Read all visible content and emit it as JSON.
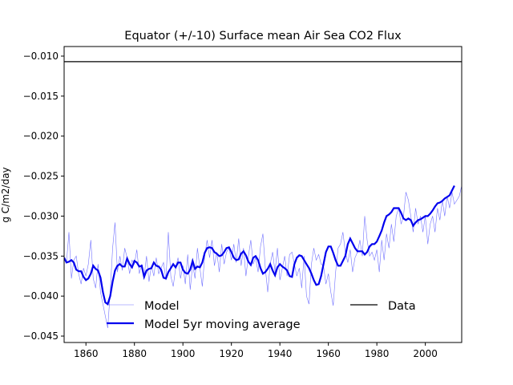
{
  "chart_data": {
    "type": "line",
    "title": "Equator (+/-10) Surface mean Air Sea CO2 Flux",
    "ylabel": "g C/m2/day",
    "xlabel": "",
    "xlim": [
      1851,
      2015
    ],
    "ylim": [
      -0.0458,
      -0.0088
    ],
    "xticks": [
      1860,
      1880,
      1900,
      1920,
      1940,
      1960,
      1980,
      2000
    ],
    "yticks": [
      -0.045,
      -0.04,
      -0.035,
      -0.03,
      -0.025,
      -0.02,
      -0.015,
      -0.01
    ],
    "ytick_labels": [
      "−0.045",
      "−0.040",
      "−0.035",
      "−0.030",
      "−0.025",
      "−0.020",
      "−0.015",
      "−0.010"
    ],
    "grid": false,
    "legend": {
      "placement": "bottom",
      "entries": [
        {
          "label": "Model",
          "series": "model"
        },
        {
          "label": "Model 5yr moving average",
          "series": "avg"
        },
        {
          "label": "Data",
          "series": "data"
        }
      ]
    },
    "colors": {
      "model": "#0000ff",
      "avg": "#0000ee",
      "data": "#000000"
    },
    "series": [
      {
        "id": "model",
        "name": "Model",
        "x_start": 1851,
        "values": [
          -0.0352,
          -0.0358,
          -0.032,
          -0.0378,
          -0.0355,
          -0.035,
          -0.0372,
          -0.0385,
          -0.0365,
          -0.0375,
          -0.036,
          -0.033,
          -0.0378,
          -0.039,
          -0.036,
          -0.0395,
          -0.041,
          -0.0425,
          -0.044,
          -0.0395,
          -0.034,
          -0.0308,
          -0.037,
          -0.035,
          -0.0368,
          -0.034,
          -0.0352,
          -0.0372,
          -0.0355,
          -0.036,
          -0.0342,
          -0.0372,
          -0.036,
          -0.0375,
          -0.035,
          -0.0382,
          -0.0362,
          -0.0375,
          -0.0352,
          -0.0372,
          -0.0365,
          -0.0358,
          -0.038,
          -0.032,
          -0.0375,
          -0.0388,
          -0.0365,
          -0.0352,
          -0.0378,
          -0.0362,
          -0.0385,
          -0.0348,
          -0.0392,
          -0.036,
          -0.0378,
          -0.034,
          -0.0365,
          -0.0388,
          -0.035,
          -0.033,
          -0.0352,
          -0.033,
          -0.0362,
          -0.0345,
          -0.037,
          -0.0335,
          -0.036,
          -0.0345,
          -0.034,
          -0.0355,
          -0.0335,
          -0.0358,
          -0.0328,
          -0.0362,
          -0.034,
          -0.0375,
          -0.035,
          -0.033,
          -0.036,
          -0.0352,
          -0.037,
          -0.0338,
          -0.0322,
          -0.0365,
          -0.0395,
          -0.036,
          -0.0345,
          -0.037,
          -0.034,
          -0.038,
          -0.0365,
          -0.035,
          -0.0375,
          -0.0348,
          -0.0345,
          -0.036,
          -0.0375,
          -0.0365,
          -0.039,
          -0.035,
          -0.04,
          -0.041,
          -0.036,
          -0.034,
          -0.0355,
          -0.0348,
          -0.036,
          -0.0362,
          -0.0385,
          -0.0372,
          -0.0395,
          -0.0412,
          -0.037,
          -0.034,
          -0.0335,
          -0.032,
          -0.0345,
          -0.0358,
          -0.0342,
          -0.037,
          -0.0352,
          -0.0345,
          -0.033,
          -0.035,
          -0.03,
          -0.033,
          -0.035,
          -0.0345,
          -0.0355,
          -0.0342,
          -0.037,
          -0.033,
          -0.0355,
          -0.0322,
          -0.034,
          -0.031,
          -0.0332,
          -0.03,
          -0.029,
          -0.031,
          -0.03,
          -0.027,
          -0.028,
          -0.03,
          -0.032,
          -0.029,
          -0.031,
          -0.03,
          -0.032,
          -0.03,
          -0.0335,
          -0.031,
          -0.03,
          -0.032,
          -0.029,
          -0.0305,
          -0.028,
          -0.03,
          -0.0275,
          -0.029,
          -0.027,
          -0.0285,
          -0.028,
          -0.0275,
          -0.0262,
          -0.0255
        ]
      },
      {
        "id": "avg",
        "name": "Model 5yr moving average",
        "x_start": 1851,
        "values": [
          -0.0352,
          -0.0358,
          -0.0357,
          -0.0355,
          -0.0358,
          -0.0367,
          -0.0369,
          -0.0369,
          -0.0376,
          -0.038,
          -0.0378,
          -0.0372,
          -0.0362,
          -0.0366,
          -0.0368,
          -0.0377,
          -0.0395,
          -0.0408,
          -0.041,
          -0.04,
          -0.0382,
          -0.0368,
          -0.0362,
          -0.036,
          -0.0363,
          -0.0363,
          -0.0353,
          -0.036,
          -0.0364,
          -0.0356,
          -0.0358,
          -0.0363,
          -0.0362,
          -0.0376,
          -0.0368,
          -0.0366,
          -0.0365,
          -0.0358,
          -0.0362,
          -0.0363,
          -0.0367,
          -0.0377,
          -0.0378,
          -0.037,
          -0.0365,
          -0.036,
          -0.0364,
          -0.0358,
          -0.0358,
          -0.0367,
          -0.0371,
          -0.0372,
          -0.0367,
          -0.0356,
          -0.0366,
          -0.0363,
          -0.0364,
          -0.0358,
          -0.0346,
          -0.034,
          -0.0339,
          -0.034,
          -0.0345,
          -0.0347,
          -0.035,
          -0.0349,
          -0.0345,
          -0.034,
          -0.0339,
          -0.0345,
          -0.0352,
          -0.0355,
          -0.0354,
          -0.0347,
          -0.0344,
          -0.0349,
          -0.0357,
          -0.0361,
          -0.0352,
          -0.035,
          -0.0355,
          -0.0365,
          -0.0372,
          -0.037,
          -0.0366,
          -0.036,
          -0.0368,
          -0.0374,
          -0.0364,
          -0.036,
          -0.0363,
          -0.0365,
          -0.0368,
          -0.0375,
          -0.0376,
          -0.036,
          -0.0352,
          -0.0349,
          -0.035,
          -0.0355,
          -0.036,
          -0.0365,
          -0.0372,
          -0.038,
          -0.0386,
          -0.0385,
          -0.0375,
          -0.036,
          -0.0345,
          -0.0338,
          -0.0338,
          -0.0346,
          -0.0355,
          -0.0362,
          -0.0362,
          -0.0356,
          -0.035,
          -0.0335,
          -0.0328,
          -0.0334,
          -0.034,
          -0.0344,
          -0.0344,
          -0.0344,
          -0.0348,
          -0.0345,
          -0.0338,
          -0.0335,
          -0.0335,
          -0.0332,
          -0.0325,
          -0.0318,
          -0.0308,
          -0.03,
          -0.0298,
          -0.0295,
          -0.029,
          -0.029,
          -0.029,
          -0.0296,
          -0.0303,
          -0.0305,
          -0.0303,
          -0.0305,
          -0.0312,
          -0.0308,
          -0.0305,
          -0.0304,
          -0.0302,
          -0.03,
          -0.03,
          -0.0297,
          -0.0293,
          -0.0288,
          -0.0284,
          -0.0283,
          -0.0281,
          -0.0278,
          -0.0276,
          -0.0274,
          -0.0268,
          -0.0262
        ]
      },
      {
        "id": "data",
        "name": "Data",
        "constant": -0.0107
      }
    ]
  }
}
